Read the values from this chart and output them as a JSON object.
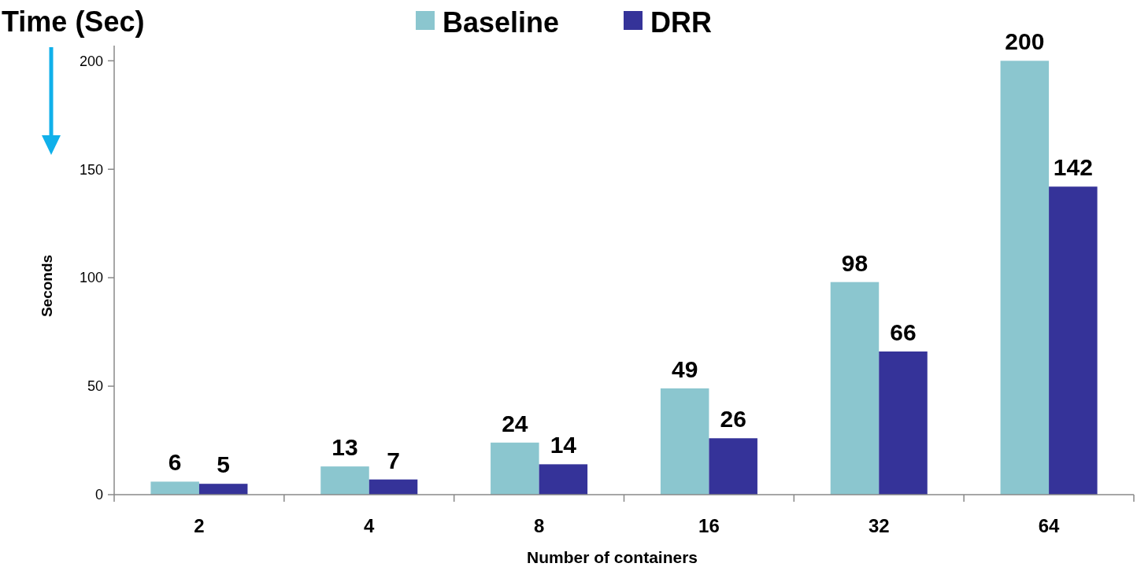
{
  "chart_data": {
    "type": "bar",
    "title": "Time (Sec)",
    "xlabel": "Number of containers",
    "ylabel": "Seconds",
    "categories": [
      "2",
      "4",
      "8",
      "16",
      "32",
      "64"
    ],
    "series": [
      {
        "name": "Baseline",
        "color": "#8bc6cf",
        "values": [
          6,
          13,
          24,
          49,
          98,
          200
        ]
      },
      {
        "name": "DRR",
        "color": "#353399",
        "values": [
          5,
          7,
          14,
          26,
          66,
          142
        ]
      }
    ],
    "ylim": [
      0,
      207
    ],
    "yticks": [
      0,
      50,
      100,
      150,
      200
    ],
    "grid": false,
    "legend": "top",
    "data_labels": true
  }
}
